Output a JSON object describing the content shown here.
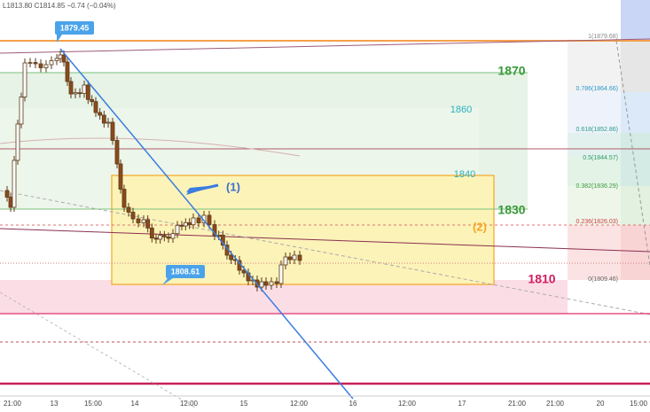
{
  "header": {
    "ohlc": "L1813.80 C1814.85 −0.74 (−0.04%)"
  },
  "callouts": {
    "high": "1879.45",
    "low": "1808.61"
  },
  "annotations": {
    "one": "(1)",
    "two": "(2)"
  },
  "levels": {
    "l1870": "1870",
    "l1860": "1860",
    "l1840": "1840",
    "l1830": "1830",
    "l1810": "1810"
  },
  "fib_levels": [
    "1(1879.68)",
    "0.786(1864.66)",
    "0.618(1852.86)",
    "0.5(1844.57)",
    "0.382(1836.29)",
    "0.236(1826.03)",
    "0(1809.46)"
  ],
  "x_axis": [
    "21:00",
    "13",
    "15:00",
    "14",
    "12:00",
    "15",
    "12:00",
    "16",
    "12:00",
    "17",
    "21:00",
    "21:00",
    "20",
    "15:00"
  ]
}
